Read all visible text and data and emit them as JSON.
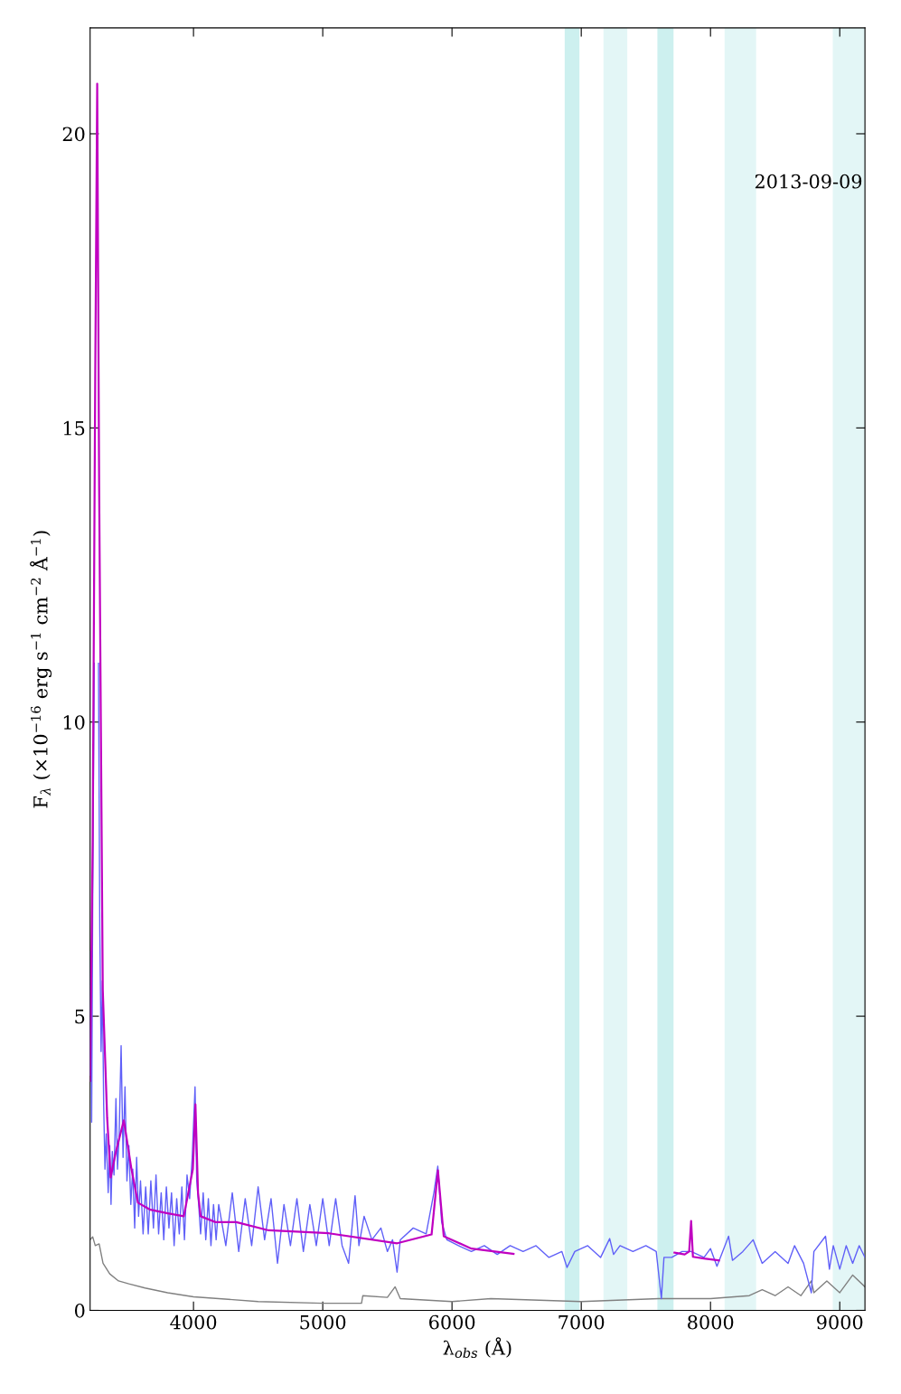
{
  "chart_data": {
    "type": "line",
    "xlabel": "λ$_{obs}$ (Å)",
    "ylabel": "F$_{λ}$ (×10$^{−16}$ erg s$^{−1}$ cm$^{−2}$ Å$^{−1}$)",
    "annotations": [
      "2013-09-09"
    ],
    "xlim": [
      3200,
      9195
    ],
    "ylim": [
      0,
      21.8
    ],
    "xticks": [
      4000,
      5000,
      6000,
      7000,
      8000,
      9000
    ],
    "yticks": [
      0,
      5,
      10,
      15,
      20
    ],
    "grid": false,
    "marker": "none",
    "line_style": "solid",
    "bands": [
      {
        "axis": "x",
        "from": 6872,
        "to": 6986,
        "color": "#cdf0ef"
      },
      {
        "axis": "x",
        "from": 7172,
        "to": 7356,
        "color": "#e3f6f6"
      },
      {
        "axis": "x",
        "from": 7589,
        "to": 7714,
        "color": "#cdf0ef"
      },
      {
        "axis": "x",
        "from": 8109,
        "to": 8353,
        "color": "#e3f6f6"
      },
      {
        "axis": "x",
        "from": 8946,
        "to": 9195,
        "color": "#e3f6f6"
      }
    ],
    "series": [
      {
        "color": "#808080",
        "x": [
          3200,
          3220,
          3240,
          3270,
          3300,
          3352,
          3420,
          3500,
          3625,
          3800,
          4000,
          4500,
          5000,
          5300,
          5310,
          5500,
          5560,
          5600,
          6000,
          6300,
          7000,
          7600,
          8000,
          8300,
          8400,
          8500,
          8600,
          8700,
          8780,
          8800,
          8900,
          9000,
          9100,
          9195
        ],
        "values": [
          1.2,
          1.25,
          1.1,
          1.13,
          0.8,
          0.62,
          0.5,
          0.45,
          0.38,
          0.3,
          0.23,
          0.15,
          0.12,
          0.12,
          0.25,
          0.22,
          0.4,
          0.2,
          0.15,
          0.2,
          0.15,
          0.2,
          0.2,
          0.25,
          0.35,
          0.25,
          0.4,
          0.25,
          0.5,
          0.3,
          0.5,
          0.3,
          0.6,
          0.4
        ]
      },
      {
        "color": "#6060f8",
        "x": [
          3200,
          3205,
          3212,
          3220,
          3232,
          3245,
          3255,
          3265,
          3275,
          3285,
          3295,
          3305,
          3315,
          3325,
          3340,
          3352,
          3362,
          3372,
          3385,
          3400,
          3412,
          3425,
          3440,
          3455,
          3470,
          3485,
          3500,
          3515,
          3530,
          3545,
          3560,
          3575,
          3590,
          3610,
          3630,
          3650,
          3670,
          3690,
          3710,
          3730,
          3750,
          3770,
          3790,
          3810,
          3830,
          3850,
          3870,
          3890,
          3910,
          3930,
          3950,
          3970,
          3990,
          4012,
          4025,
          4040,
          4055,
          4075,
          4095,
          4115,
          4135,
          4155,
          4175,
          4195,
          4250,
          4300,
          4350,
          4400,
          4450,
          4500,
          4550,
          4600,
          4650,
          4700,
          4750,
          4800,
          4850,
          4900,
          4950,
          5000,
          5050,
          5100,
          5150,
          5200,
          5250,
          5280,
          5320,
          5380,
          5450,
          5500,
          5540,
          5575,
          5600,
          5700,
          5800,
          5860,
          5890,
          5920,
          5960,
          6050,
          6150,
          6250,
          6350,
          6450,
          6550,
          6650,
          6750,
          6850,
          6890,
          6950,
          7050,
          7150,
          7220,
          7250,
          7300,
          7400,
          7500,
          7580,
          7620,
          7640,
          7700,
          7780,
          7850,
          7950,
          8000,
          8050,
          8140,
          8170,
          8250,
          8330,
          8400,
          8500,
          8600,
          8650,
          8720,
          8780,
          8800,
          8890,
          8920,
          8950,
          9000,
          9050,
          9100,
          9150,
          9195
        ],
        "values": [
          4.0,
          6.1,
          3.2,
          6.9,
          11,
          null,
          null,
          11,
          6.5,
          4.4,
          5.6,
          3.5,
          2.4,
          3.0,
          2.0,
          2.8,
          1.8,
          2.7,
          2.3,
          3.6,
          2.4,
          3.0,
          4.5,
          2.6,
          3.8,
          2.2,
          2.8,
          1.8,
          2.4,
          1.4,
          2.6,
          1.6,
          2.2,
          1.3,
          2.1,
          1.3,
          2.2,
          1.4,
          2.3,
          1.3,
          2.0,
          1.2,
          2.1,
          1.4,
          2.0,
          1.1,
          1.9,
          1.3,
          2.1,
          1.2,
          2.3,
          1.9,
          2.6,
          3.8,
          2.2,
          1.8,
          1.3,
          2.0,
          1.2,
          1.9,
          1.1,
          1.8,
          1.2,
          1.8,
          1.1,
          2.0,
          1.0,
          1.9,
          1.1,
          2.1,
          1.2,
          1.9,
          0.8,
          1.8,
          1.1,
          1.9,
          1.0,
          1.8,
          1.1,
          1.9,
          1.1,
          1.9,
          1.1,
          0.8,
          1.95,
          1.1,
          1.6,
          1.2,
          1.4,
          1.0,
          1.2,
          0.65,
          1.2,
          1.4,
          1.3,
          2.0,
          2.45,
          1.5,
          1.2,
          1.1,
          1.0,
          1.1,
          0.95,
          1.1,
          1.0,
          1.1,
          0.9,
          1.0,
          0.73,
          1.0,
          1.1,
          0.9,
          1.22,
          0.95,
          1.1,
          1.0,
          1.1,
          1.0,
          0.2,
          0.9,
          0.9,
          1.0,
          1.0,
          0.9,
          1.05,
          0.75,
          1.26,
          0.85,
          1.0,
          1.2,
          0.8,
          1.0,
          0.8,
          1.1,
          0.8,
          0.3,
          1.0,
          1.26,
          0.7,
          1.1,
          0.7,
          1.1,
          0.8,
          1.1,
          0.9
        ]
      },
      {
        "color": "#c000c0",
        "x": [
          3200,
          3220,
          3240,
          3255,
          3270,
          3298,
          3332,
          3359,
          3400,
          3461,
          3520,
          3570,
          3666,
          3800,
          3925,
          3995,
          4015,
          4035,
          4055,
          4170,
          4331,
          4581,
          5048,
          5576,
          5842,
          5891,
          5936,
          6150,
          6476
        ],
        "values": [
          3.9,
          8.0,
          16,
          20.85,
          14,
          5.45,
          3.27,
          2.26,
          2.7,
          3.23,
          2.4,
          1.83,
          1.71,
          1.65,
          1.6,
          2.4,
          3.5,
          2.0,
          1.6,
          1.5,
          1.5,
          1.36,
          1.31,
          1.14,
          1.29,
          2.38,
          1.26,
          1.05,
          0.96
        ]
      },
      {
        "color": "#c000c0",
        "x": [
          7721,
          7800,
          7835,
          7850,
          7864,
          7950,
          8065
        ],
        "values": [
          0.98,
          0.95,
          1.0,
          1.52,
          0.91,
          0.88,
          0.85
        ]
      }
    ]
  }
}
